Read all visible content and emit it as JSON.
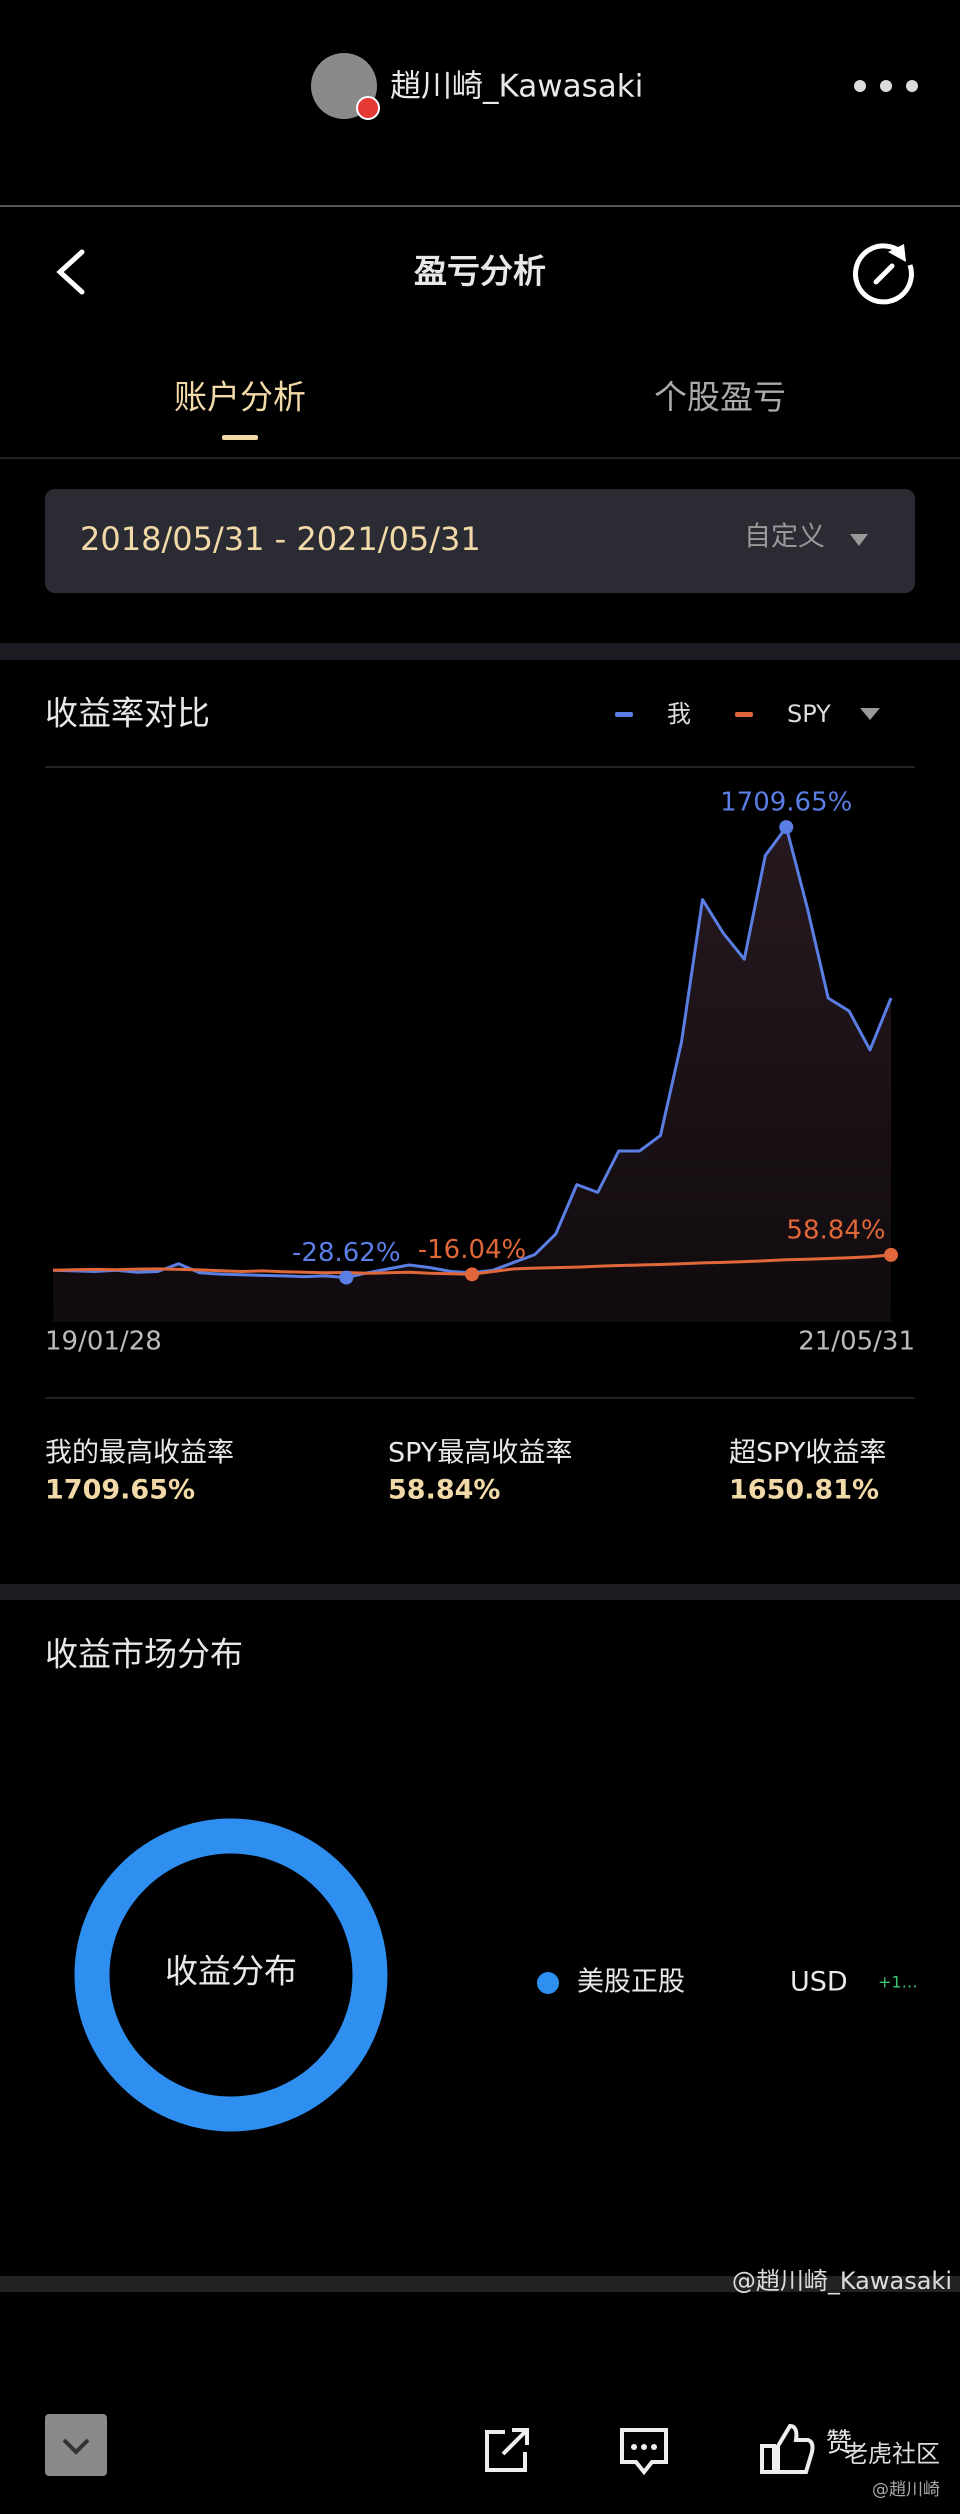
{
  "app": {
    "username": "趙川崎_Kawasaki",
    "title": "盈亏分析",
    "tabs": [
      "账户分析",
      "个股盈亏"
    ],
    "date_range": "2018/05/31 - 2021/05/31",
    "date_mode": "自定义",
    "section_compare": "收益率对比",
    "section_market": "收益市场分布",
    "stats": [
      {
        "label": "我的最高收益率",
        "value": "1709.65%"
      },
      {
        "label": "SPY最高收益率",
        "value": "58.84%"
      },
      {
        "label": "超SPY收益率",
        "value": "1650.81%"
      }
    ],
    "legend_currency": "USD",
    "legend_amount": "+1…",
    "watermark": "@趙川崎_Kawasaki",
    "like": "赞",
    "community": "老虎社区",
    "signature": "@趙川崎"
  },
  "chart_data": [
    {
      "type": "line",
      "categories": [
        "19/01/28",
        null,
        null,
        null,
        null,
        null,
        null,
        null,
        null,
        null,
        null,
        null,
        null,
        null,
        null,
        null,
        null,
        null,
        null,
        null,
        null,
        null,
        null,
        null,
        null,
        null,
        null,
        null,
        null,
        null,
        null,
        null,
        null,
        null,
        null,
        null,
        null,
        null,
        null,
        null,
        "21/05/31"
      ],
      "ylim": [
        -200,
        1930
      ],
      "series": [
        {
          "name": "我",
          "color": "#5b7ee5",
          "values": [
            0,
            -3,
            -5,
            0,
            -8,
            -5,
            25,
            -10,
            -15,
            -18,
            -20,
            -22,
            -25,
            -22,
            -28.62,
            -10,
            5,
            20,
            10,
            -5,
            -10,
            0,
            30,
            60,
            140,
            330,
            300,
            460,
            460,
            520,
            880,
            1430,
            1300,
            1200,
            1600,
            1709.65,
            1400,
            1050,
            1000,
            850,
            1050
          ],
          "value_labels": [
            null,
            null,
            null,
            null,
            null,
            null,
            null,
            null,
            null,
            null,
            null,
            null,
            null,
            null,
            "-28.62%",
            null,
            null,
            null,
            null,
            null,
            null,
            null,
            null,
            null,
            null,
            null,
            null,
            null,
            null,
            null,
            null,
            null,
            null,
            null,
            null,
            "1709.65%",
            null,
            null,
            null,
            null,
            null
          ]
        },
        {
          "name": "SPY",
          "color": "#e0673a",
          "values": [
            0,
            2,
            3,
            2,
            4,
            5,
            3,
            1,
            -2,
            -5,
            -3,
            -6,
            -8,
            -10,
            -9,
            -12,
            -10,
            -8,
            -12,
            -14,
            -16.04,
            -5,
            5,
            8,
            10,
            12,
            15,
            18,
            20,
            22,
            25,
            28,
            30,
            33,
            36,
            40,
            42,
            45,
            48,
            52,
            58.84
          ],
          "value_labels": [
            null,
            null,
            null,
            null,
            null,
            null,
            null,
            null,
            null,
            null,
            null,
            null,
            null,
            null,
            null,
            null,
            null,
            null,
            null,
            null,
            "-16.04%",
            null,
            null,
            null,
            null,
            null,
            null,
            null,
            null,
            null,
            null,
            null,
            null,
            null,
            null,
            null,
            null,
            null,
            null,
            null,
            "58.84%"
          ]
        }
      ]
    },
    {
      "type": "donut",
      "center_text": "收益分布",
      "categories": [
        "美股正股"
      ],
      "values": [
        100
      ],
      "colors": [
        "#2f8ff0"
      ]
    }
  ]
}
